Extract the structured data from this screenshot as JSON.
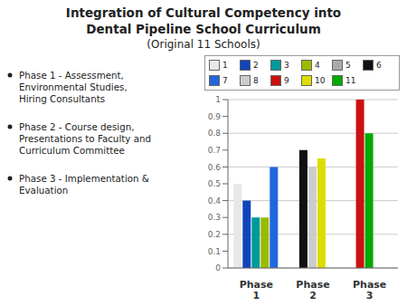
{
  "chart_data": {
    "type": "bar",
    "title": "Integration of Cultural Competency into\nDental Pipeline School Curriculum",
    "subtitle": "(Original 11 Schools)",
    "annotations": [
      "Phase 1 - Assessment,\nEnvironmental Studies,\nHiring Consultants",
      "Phase 2 - Course design,\nPresentations to Faculty and\nCurriculum Committee",
      "Phase 3 - Implementation &\nEvaluation"
    ],
    "categories": [
      "Phase\n1",
      "Phase\n2",
      "Phase\n3"
    ],
    "series": [
      {
        "name": "1",
        "color": "#e8e8e8",
        "values": [
          0.5,
          null,
          null
        ]
      },
      {
        "name": "2",
        "color": "#1144bb",
        "values": [
          0.4,
          null,
          null
        ]
      },
      {
        "name": "3",
        "color": "#009999",
        "values": [
          0.3,
          null,
          null
        ]
      },
      {
        "name": "4",
        "color": "#99bb00",
        "values": [
          0.3,
          null,
          null
        ]
      },
      {
        "name": "5",
        "color": "#aaaaaa",
        "values": [
          null,
          null,
          null
        ]
      },
      {
        "name": "6",
        "color": "#111111",
        "values": [
          null,
          0.7,
          null
        ]
      },
      {
        "name": "7",
        "color": "#2266dd",
        "values": [
          0.6,
          null,
          null
        ]
      },
      {
        "name": "8",
        "color": "#cccccc",
        "values": [
          null,
          0.6,
          null
        ]
      },
      {
        "name": "9",
        "color": "#cc1111",
        "values": [
          null,
          null,
          1.0
        ]
      },
      {
        "name": "10",
        "color": "#dddd00",
        "values": [
          null,
          0.65,
          null
        ]
      },
      {
        "name": "11",
        "color": "#00aa00",
        "values": [
          null,
          null,
          0.8
        ]
      }
    ],
    "ylim": [
      0,
      1
    ],
    "yticks": [
      0,
      0.1,
      0.2,
      0.3,
      0.4,
      0.5,
      0.6,
      0.7,
      0.8,
      0.9,
      1
    ],
    "grid": true,
    "legend": "top"
  }
}
